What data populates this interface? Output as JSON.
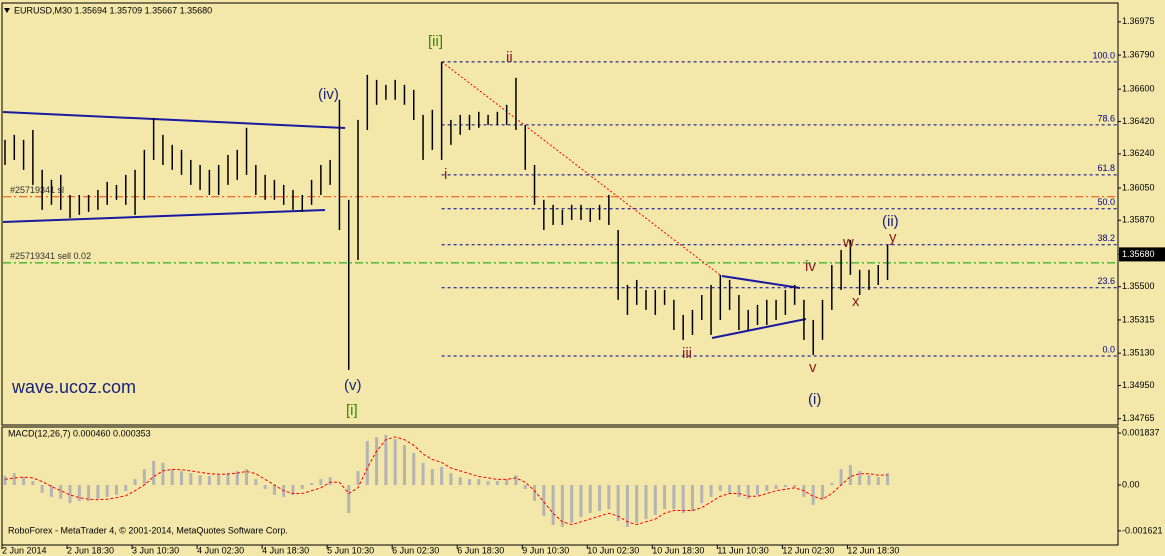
{
  "chart_data": [
    {
      "type": "ohlc",
      "title": "EURUSD,M30  1.35694 1.35709 1.35667 1.35680",
      "watermark": "wave.ucoz.com",
      "footer": "RoboForex - MetaTrader 4, © 2001-2014, MetaQuotes Software Corp.",
      "color": "#000000",
      "categories": [
        "2 Jun 2014",
        null,
        null,
        null,
        null,
        null,
        null,
        "2 Jun 18:30",
        null,
        null,
        null,
        null,
        null,
        null,
        "3 Jun 10:30",
        null,
        null,
        null,
        null,
        null,
        null,
        "4 Jun 02:30",
        null,
        null,
        null,
        null,
        null,
        null,
        "4 Jun 18:30",
        null,
        null,
        null,
        null,
        null,
        null,
        "5 Jun 10:30",
        null,
        null,
        null,
        null,
        null,
        null,
        "6 Jun 02:30",
        null,
        null,
        null,
        null,
        null,
        null,
        "6 Jun 18:30",
        null,
        null,
        null,
        null,
        null,
        null,
        "9 Jun 10:30",
        null,
        null,
        null,
        null,
        null,
        null,
        "10 Jun 02:30",
        null,
        null,
        null,
        null,
        null,
        null,
        "10 Jun 18:30",
        null,
        null,
        null,
        null,
        null,
        null,
        "11 Jun 10:30",
        null,
        null,
        null,
        null,
        null,
        null,
        "12 Jun 02:30",
        null,
        null,
        null,
        null,
        null,
        null,
        "12 Jun 18:30",
        null,
        null,
        null,
        null
      ],
      "high": [
        1.36318,
        1.36346,
        1.36318,
        1.36373,
        1.36151,
        1.36095,
        1.36123,
        1.36011,
        1.36011,
        1.36011,
        1.36039,
        1.36084,
        1.36067,
        1.36123,
        1.36151,
        1.36262,
        1.3644,
        1.36346,
        1.3629,
        1.36262,
        1.36206,
        1.36178,
        1.36151,
        1.36178,
        1.36234,
        1.36262,
        1.36385,
        1.36178,
        1.36123,
        1.36095,
        1.36067,
        1.36039,
        1.36011,
        1.36095,
        1.36178,
        1.36206,
        1.36541,
        1.35984,
        1.36429,
        1.3668,
        1.36652,
        1.36624,
        1.36652,
        1.36624,
        1.36596,
        1.36457,
        1.36485,
        1.36752,
        1.36429,
        1.36457,
        1.36457,
        1.36474,
        1.36457,
        1.36474,
        1.36513,
        1.36663,
        1.36401,
        1.36178,
        1.35984,
        1.35956,
        1.35928,
        1.35956,
        1.35956,
        1.35939,
        1.35956,
        1.36011,
        1.35816,
        1.3551,
        1.35538,
        1.35482,
        1.35482,
        1.35482,
        1.35427,
        1.35343,
        1.35371,
        1.35454,
        1.3551,
        1.35566,
        1.35538,
        1.35454,
        1.35371,
        1.35399,
        1.35427,
        1.35427,
        1.35482,
        1.3551,
        1.35427,
        1.35315,
        1.35427,
        1.35621,
        1.35705,
        1.35761,
        1.35594,
        1.35594,
        1.35621,
        1.35733
      ],
      "low": [
        1.36178,
        1.36206,
        1.36151,
        1.36067,
        1.35928,
        1.35956,
        1.35928,
        1.35883,
        1.359,
        1.35917,
        1.35928,
        1.35956,
        1.35984,
        1.35956,
        1.359,
        1.35984,
        1.36206,
        1.36178,
        1.36151,
        1.36123,
        1.36067,
        1.36039,
        1.36011,
        1.36011,
        1.36067,
        1.36095,
        1.36123,
        1.36011,
        1.35984,
        1.35984,
        1.35956,
        1.35928,
        1.35917,
        1.35956,
        1.36011,
        1.36067,
        1.35816,
        1.35037,
        1.35649,
        1.36373,
        1.36513,
        1.36541,
        1.36541,
        1.36513,
        1.36429,
        1.36206,
        1.36262,
        1.36206,
        1.3629,
        1.36346,
        1.36373,
        1.36385,
        1.36401,
        1.36401,
        1.36401,
        1.36373,
        1.36151,
        1.35956,
        1.35816,
        1.35844,
        1.35844,
        1.35872,
        1.35872,
        1.35861,
        1.35872,
        1.35844,
        1.35427,
        1.35343,
        1.35399,
        1.35371,
        1.35343,
        1.35399,
        1.35259,
        1.35204,
        1.35232,
        1.35315,
        1.35232,
        1.35315,
        1.35371,
        1.35259,
        1.35259,
        1.35287,
        1.35287,
        1.35315,
        1.35343,
        1.35399,
        1.35204,
        1.3512,
        1.35204,
        1.35371,
        1.35482,
        1.35566,
        1.35454,
        1.35482,
        1.3551,
        1.35538
      ],
      "ylim": [
        1.3473,
        1.3708
      ],
      "yticks": [
        1.36975,
        {
          "value": 1.3679,
          "label": "1.36790"
        },
        {
          "value": 1.366,
          "label": "1.36600"
        },
        {
          "value": 1.3642,
          "label": "1.36420"
        },
        {
          "value": 1.3624,
          "label": "1.36240"
        },
        {
          "value": 1.3605,
          "label": "1.36050"
        },
        {
          "value": 1.3587,
          "label": "1.35870"
        },
        {
          "value": 1.3568,
          "label": "1.35680"
        },
        {
          "value": 1.355,
          "label": "1.35500"
        },
        1.35315,
        {
          "value": 1.3513,
          "label": "1.35130"
        },
        {
          "value": 1.3495,
          "label": "1.34950"
        },
        1.34765
      ],
      "last_price": {
        "value": 1.3568,
        "label": "1.35680"
      },
      "fib": [
        {
          "label": "100.0",
          "price": 1.36752
        },
        {
          "label": "78.6",
          "price": 1.36401
        },
        {
          "label": "61.8",
          "price": 1.36123
        },
        {
          "label": "50.0",
          "price": 1.35934
        },
        {
          "label": "38.2",
          "price": 1.35734
        },
        {
          "label": "23.6",
          "price": 1.35494
        },
        {
          "label": "0.0",
          "price": 1.35114
        }
      ],
      "fib_color": "#00008b",
      "orders": [
        {
          "label": "#25719341 sl",
          "price": 1.36001,
          "color": "#ff4500"
        },
        {
          "label": "#25719341 sell 0.02",
          "price": 1.35633,
          "color": "#00a000"
        }
      ],
      "annotations": [
        {
          "text": "[ii]",
          "color": "#2e8b00"
        },
        {
          "text": "ii",
          "color": "#8b1a1a"
        },
        {
          "text": "(iv)",
          "color": "#1a237e"
        },
        {
          "text": "i",
          "color": "#8b1a1a"
        },
        {
          "text": "(v)",
          "color": "#1a237e"
        },
        {
          "text": "[i]",
          "color": "#2e8b00"
        },
        {
          "text": "iii",
          "color": "#8b1a1a"
        },
        {
          "text": "iv",
          "color": "#8b1a1a"
        },
        {
          "text": "w",
          "color": "#8b1a1a"
        },
        {
          "text": "(ii)",
          "color": "#1a237e"
        },
        {
          "text": "y",
          "color": "#8b1a1a"
        },
        {
          "text": "x",
          "color": "#8b1a1a"
        },
        {
          "text": "v",
          "color": "#8b1a1a"
        },
        {
          "text": "(i)",
          "color": "#1a237e"
        }
      ]
    },
    {
      "type": "macd",
      "title": "MACD(12,26,7) 0.000460 0.000353",
      "histogram": {
        "color": "#b4b4b4",
        "values": [
          0.00032,
          0.00042,
          0.00028,
          0.00014,
          -0.00028,
          -0.00042,
          -0.00049,
          -0.00064,
          -0.00056,
          -0.00056,
          -0.00049,
          -0.00042,
          -0.00035,
          -0.00021,
          0.00021,
          0.00056,
          0.00085,
          0.00078,
          0.00056,
          0.00049,
          0.00042,
          0.00035,
          0.00032,
          0.00035,
          0.00042,
          0.00049,
          0.00056,
          0.00021,
          -0.00014,
          -0.00035,
          -0.00042,
          -0.00035,
          -0.00014,
          7e-05,
          0.00021,
          0.00028,
          0,
          -0.00099,
          0.00049,
          0.00155,
          0.00169,
          0.00177,
          0.00162,
          0.00141,
          0.00113,
          0.00078,
          0.00056,
          0.00064,
          0.00042,
          0.00028,
          0.00021,
          0.00021,
          0.00014,
          0.00014,
          0.00021,
          0.00035,
          -0.00014,
          -0.00056,
          -0.00109,
          -0.00141,
          -0.00148,
          -0.00134,
          -0.00113,
          -0.00099,
          -0.00092,
          -0.00085,
          -0.00127,
          -0.00148,
          -0.00134,
          -0.0012,
          -0.00106,
          -0.00085,
          -0.00085,
          -0.00099,
          -0.00092,
          -0.00064,
          -0.00042,
          -0.00021,
          -0.00028,
          -0.00042,
          -0.00049,
          -0.00035,
          -0.00021,
          -0.00014,
          -7e-05,
          -7e-05,
          -0.00042,
          -0.00071,
          -0.00049,
          7e-05,
          0.00056,
          0.00071,
          0.00049,
          0.00035,
          0.00028,
          0.00042
        ]
      },
      "signal": {
        "color": "#ff0000",
        "values": [
          0.0002,
          0.00025,
          0.00028,
          0.00025,
          0.00012,
          -5e-05,
          -0.0002,
          -0.00035,
          -0.00045,
          -0.0005,
          -0.00052,
          -0.0005,
          -0.00045,
          -0.00038,
          -0.0002,
          0,
          0.0003,
          0.0005,
          0.00055,
          0.00054,
          0.0005,
          0.00045,
          0.0004,
          0.00038,
          0.00039,
          0.00042,
          0.00048,
          0.0004,
          0.0002,
          0,
          -0.0002,
          -0.0003,
          -0.0003,
          -0.0002,
          -0.0001,
          0.0001,
          0.0001,
          -0.0003,
          -0.0001,
          0.0006,
          0.0012,
          0.0016,
          0.0017,
          0.0016,
          0.0014,
          0.0011,
          0.0009,
          0.0008,
          0.0006,
          0.0005,
          0.0004,
          0.0003,
          0.00025,
          0.0002,
          0.0002,
          0.00025,
          0.0001,
          -0.0002,
          -0.0006,
          -0.001,
          -0.0013,
          -0.0014,
          -0.0013,
          -0.0012,
          -0.0011,
          -0.001,
          -0.0011,
          -0.0013,
          -0.0014,
          -0.0013,
          -0.0012,
          -0.001,
          -0.0009,
          -0.0009,
          -0.0009,
          -0.0008,
          -0.0006,
          -0.0004,
          -0.0003,
          -0.0003,
          -0.0004,
          -0.0004,
          -0.0003,
          -0.0002,
          -0.00015,
          -0.0001,
          -0.0002,
          -0.0004,
          -0.0005,
          -0.0003,
          0,
          0.0003,
          0.0004,
          0.0004,
          0.00035,
          0.00035
        ]
      },
      "ylim": [
        -0.00212,
        0.00205
      ],
      "yticks": [
        0.001837,
        {
          "value": 0,
          "label": "0.00"
        },
        -0.001621
      ]
    }
  ]
}
